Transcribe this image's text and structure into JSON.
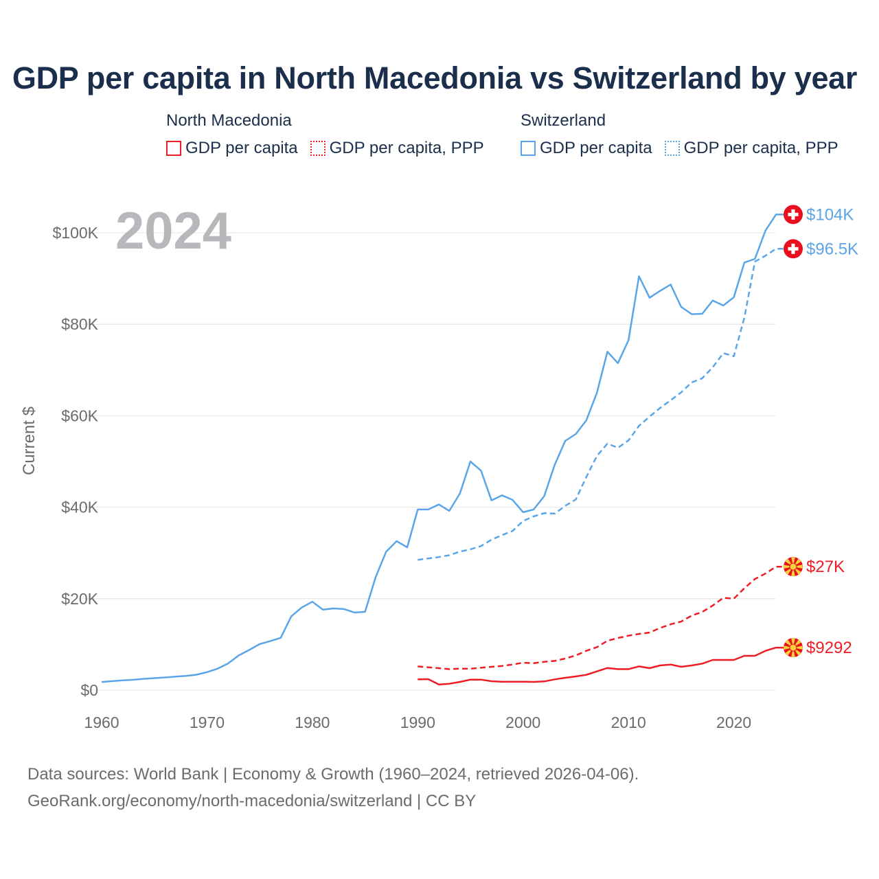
{
  "title": "GDP per capita in North Macedonia vs Switzerland by year",
  "legend": {
    "groups": [
      {
        "name": "North Macedonia",
        "items": [
          "GDP per capita",
          "GDP per capita, PPP"
        ],
        "color": "#ee1c25"
      },
      {
        "name": "Switzerland",
        "items": [
          "GDP per capita",
          "GDP per capita, PPP"
        ],
        "color": "#5aa5e8"
      }
    ]
  },
  "year_display": "2024",
  "footer": {
    "line1": "Data sources: World Bank | Economy & Growth (1960–2024, retrieved 2026-04-06).",
    "line2": "GeoRank.org/economy/north-macedonia/switzerland | CC BY"
  },
  "chart_data": {
    "type": "line",
    "title": "GDP per capita in North Macedonia vs Switzerland by year",
    "xlabel": "",
    "ylabel": "Current $",
    "xlim": [
      1960,
      2024
    ],
    "ylim": [
      0,
      105000
    ],
    "x_ticks": [
      1960,
      1970,
      1980,
      1990,
      2000,
      2010,
      2020
    ],
    "x_tick_labels": [
      "1960",
      "1970",
      "1980",
      "1990",
      "2000",
      "2010",
      "2020"
    ],
    "y_ticks": [
      0,
      20000,
      40000,
      60000,
      80000,
      100000
    ],
    "y_tick_labels": [
      "$0",
      "$20K",
      "$40K",
      "$60K",
      "$80K",
      "$100K"
    ],
    "grid": true,
    "series": [
      {
        "name": "Switzerland GDP per capita",
        "country": "Switzerland",
        "flag": "switzerland-flag-icon",
        "color": "#5aa5e8",
        "dash": false,
        "start_year": 1960,
        "end_label": "$104K",
        "values": [
          1787,
          1971,
          2131,
          2271,
          2474,
          2622,
          2781,
          2960,
          3118,
          3374,
          3939,
          4707,
          5843,
          7577,
          8780,
          10070,
          10714,
          11446,
          16153,
          18073,
          19346,
          17610,
          17873,
          17728,
          16970,
          17127,
          24669,
          30263,
          32584,
          31217,
          39500,
          39500,
          40600,
          39200,
          43000,
          50000,
          48000,
          41500,
          42600,
          41600,
          38900,
          39500,
          42400,
          49300,
          54500,
          56000,
          59000,
          65000,
          74000,
          71500,
          76500,
          90500,
          85800,
          87300,
          88700,
          83800,
          82200,
          82300,
          85200,
          84100,
          85900,
          93500,
          94300,
          100500,
          104000
        ]
      },
      {
        "name": "Switzerland GDP per capita, PPP",
        "country": "Switzerland",
        "flag": "switzerland-flag-icon",
        "color": "#5aa5e8",
        "dash": true,
        "start_year": 1990,
        "end_label": "$96.5K",
        "values": [
          28500,
          28800,
          29100,
          29500,
          30300,
          30800,
          31500,
          32900,
          33900,
          34800,
          37000,
          38000,
          38700,
          38600,
          40300,
          41700,
          46600,
          51200,
          53900,
          53000,
          54600,
          57800,
          59800,
          61700,
          63400,
          65100,
          67300,
          68200,
          70600,
          73700,
          73000,
          81500,
          93700,
          95000,
          96500
        ]
      },
      {
        "name": "North Macedonia GDP per capita, PPP",
        "country": "North Macedonia",
        "flag": "north-macedonia-flag-icon",
        "color": "#ee1c25",
        "dash": true,
        "start_year": 1990,
        "end_label": "$27K",
        "values": [
          5200,
          5000,
          4800,
          4600,
          4700,
          4700,
          4900,
          5100,
          5300,
          5600,
          6000,
          5900,
          6200,
          6400,
          6900,
          7600,
          8600,
          9400,
          10800,
          11400,
          11900,
          12300,
          12600,
          13600,
          14400,
          15000,
          16300,
          17100,
          18500,
          20200,
          20000,
          22300,
          24300,
          25500,
          27000
        ]
      },
      {
        "name": "North Macedonia GDP per capita",
        "country": "North Macedonia",
        "flag": "north-macedonia-flag-icon",
        "color": "#ee1c25",
        "dash": false,
        "start_year": 1990,
        "end_label": "$9292",
        "values": [
          2350,
          2400,
          1250,
          1400,
          1800,
          2300,
          2300,
          1950,
          1850,
          1850,
          1850,
          1800,
          1900,
          2350,
          2700,
          3000,
          3350,
          4100,
          4850,
          4600,
          4600,
          5200,
          4800,
          5400,
          5600,
          5100,
          5400,
          5800,
          6600,
          6600,
          6600,
          7500,
          7500,
          8600,
          9292
        ]
      }
    ]
  }
}
